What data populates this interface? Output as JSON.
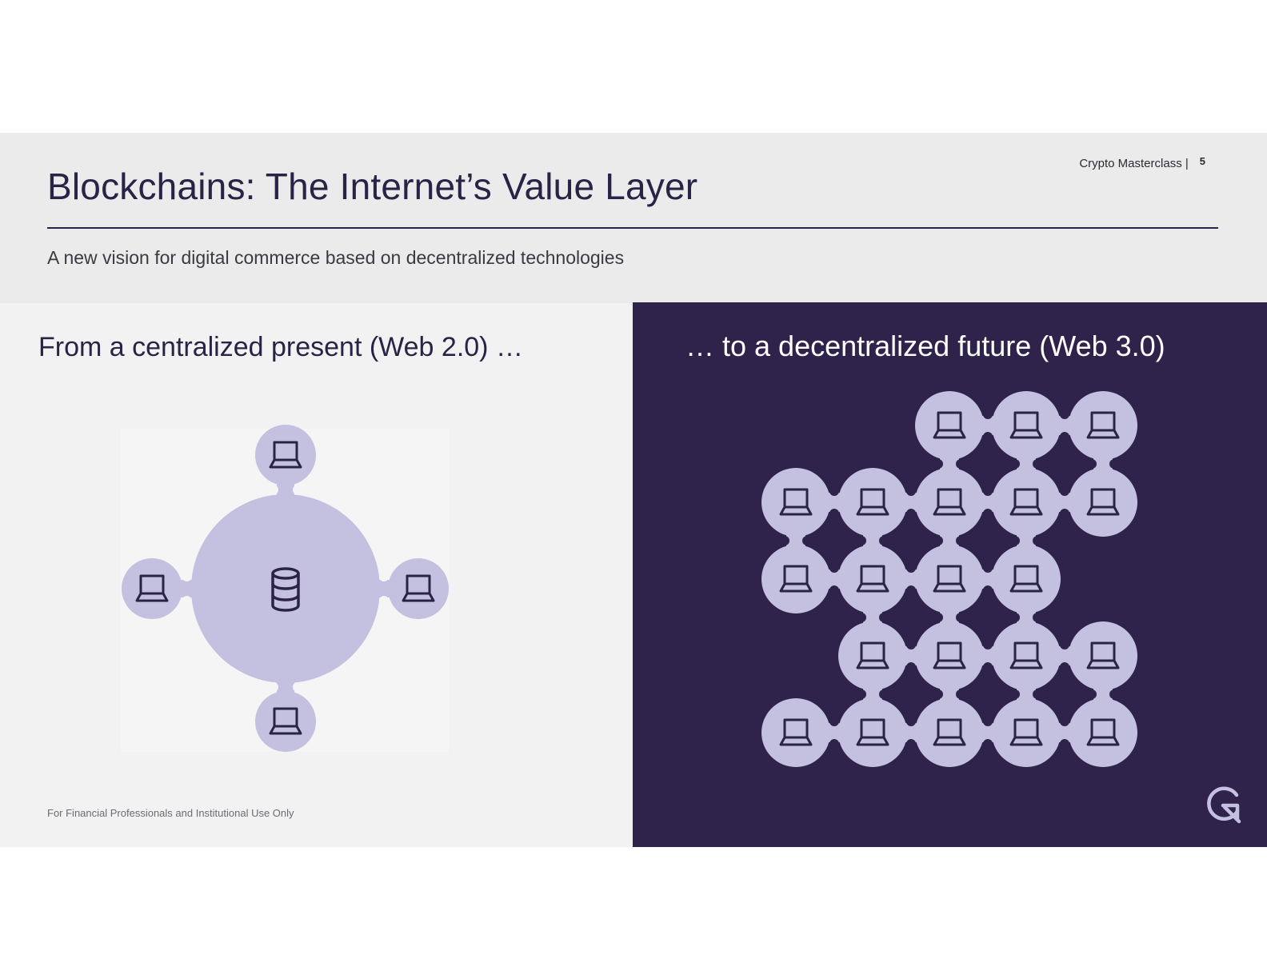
{
  "header": {
    "title": "Blockchains: The Internet’s Value Layer",
    "subtitle": "A new vision for digital commerce based on decentralized technologies",
    "section_label": "Crypto Masterclass |",
    "page_number": "5"
  },
  "left": {
    "heading": "From a centralized present (Web 2.0) …",
    "hub_icon": "database-icon",
    "client_icon": "laptop-icon",
    "client_count": 4
  },
  "right": {
    "heading": "… to a decentralized future (Web 3.0)",
    "node_icon": "laptop-icon",
    "node_rows": [
      [
        0,
        0,
        1,
        1,
        1
      ],
      [
        1,
        1,
        1,
        1,
        1
      ],
      [
        1,
        1,
        1,
        1,
        0
      ],
      [
        0,
        1,
        1,
        1,
        1
      ],
      [
        1,
        1,
        1,
        1,
        1
      ]
    ]
  },
  "footer": {
    "disclaimer": "For Financial Professionals and Institutional Use Only",
    "logo_icon": "g-logo-icon"
  },
  "colors": {
    "navy": "#2f234b",
    "lavender": "#c3c0e0",
    "header_gray": "#ebebeb",
    "panel_gray": "#f2f2f2",
    "icon_stroke": "#2a2346"
  }
}
